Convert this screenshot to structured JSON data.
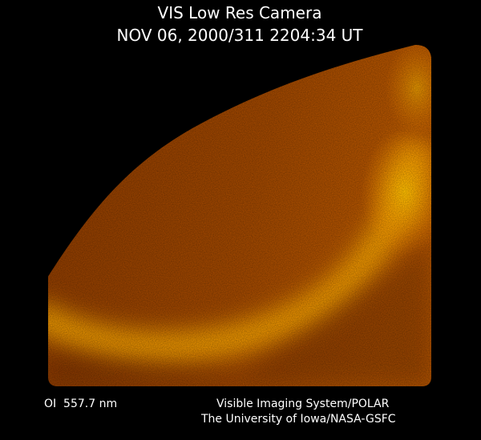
{
  "header": {
    "title": "VIS Low Res Camera",
    "timestamp": "NOV 06, 2000/311 2204:34 UT"
  },
  "footer": {
    "filter": "OI  557.7 nm",
    "instrument": "Visible Imaging System/POLAR",
    "institution": "The University of Iowa/NASA-GSFC"
  }
}
